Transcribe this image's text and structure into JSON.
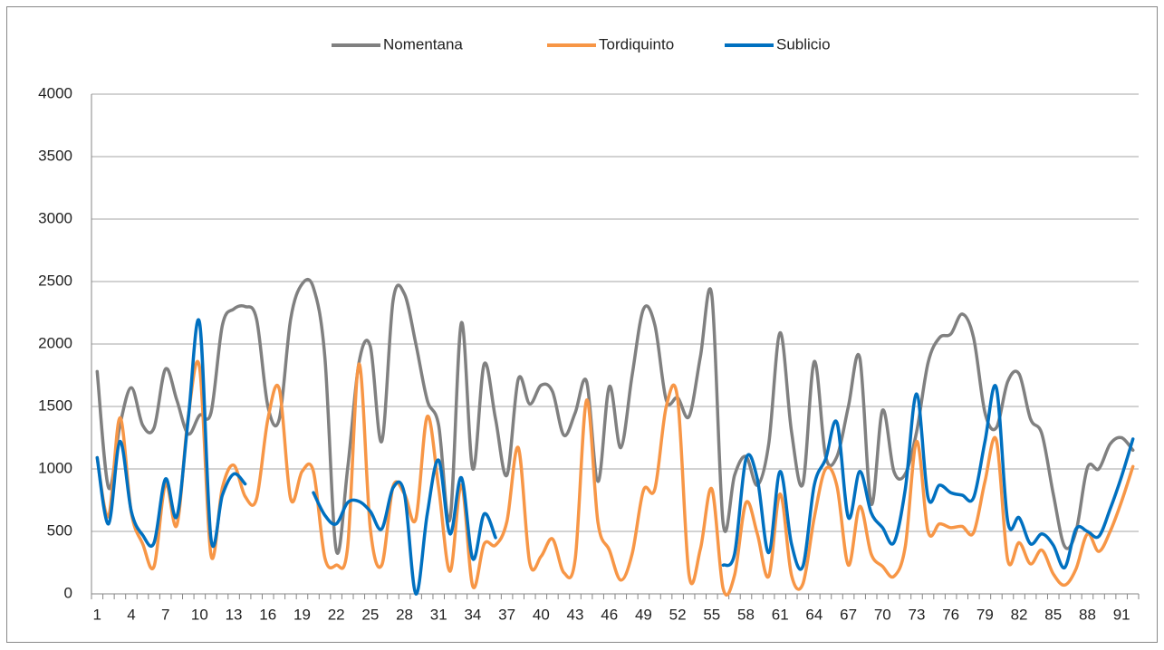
{
  "chart_data": {
    "type": "line",
    "categories": [
      1,
      null,
      null,
      4,
      null,
      null,
      7,
      null,
      null,
      10,
      null,
      null,
      13,
      null,
      null,
      16,
      null,
      null,
      19,
      null,
      null,
      22,
      null,
      null,
      25,
      null,
      null,
      28,
      null,
      null,
      31,
      null,
      null,
      34,
      null,
      null,
      37,
      null,
      null,
      40,
      null,
      null,
      43,
      null,
      null,
      46,
      null,
      null,
      49,
      null,
      null,
      52,
      null,
      null,
      55,
      null,
      null,
      58,
      null,
      null,
      61,
      null,
      null,
      64,
      null,
      null,
      67,
      null,
      null,
      70,
      null,
      null,
      73,
      null,
      null,
      76,
      null,
      null,
      79,
      null,
      null,
      82,
      null,
      null,
      85,
      null,
      null,
      88,
      null,
      null,
      91,
      null
    ],
    "series": [
      {
        "name": "Nomentana",
        "color": "#808080",
        "values": [
          1780,
          850,
          1350,
          1650,
          1350,
          1330,
          1800,
          1550,
          1280,
          1430,
          1450,
          2150,
          2280,
          2300,
          2200,
          1500,
          1400,
          2200,
          2480,
          2450,
          1900,
          350,
          1000,
          1850,
          1980,
          1220,
          2350,
          2400,
          2000,
          1550,
          1350,
          600,
          2170,
          1000,
          1840,
          1400,
          950,
          1720,
          1520,
          1670,
          1620,
          1270,
          1450,
          1700,
          900,
          1660,
          1170,
          1750,
          2280,
          2150,
          1550,
          1570,
          1420,
          1900,
          2390,
          560,
          950,
          1100,
          870,
          1200,
          2090,
          1300,
          880,
          1860,
          1100,
          1100,
          1500,
          1890,
          720,
          1470,
          980,
          960,
          1300,
          1850,
          2050,
          2080,
          2240,
          2050,
          1450,
          1330,
          1700,
          1760,
          1400,
          1280,
          800,
          380,
          500,
          1010,
          1000,
          1200,
          1250,
          1150
        ]
      },
      {
        "name": "Tordiquinto",
        "color": "#f79646",
        "values": [
          1090,
          620,
          1410,
          650,
          400,
          220,
          880,
          550,
          1420,
          1810,
          310,
          850,
          1030,
          780,
          760,
          1400,
          1640,
          760,
          980,
          980,
          290,
          230,
          370,
          1840,
          520,
          230,
          860,
          800,
          600,
          1420,
          850,
          180,
          870,
          60,
          400,
          390,
          580,
          1170,
          250,
          300,
          440,
          170,
          280,
          1550,
          570,
          350,
          110,
          320,
          830,
          840,
          1500,
          1560,
          150,
          360,
          840,
          40,
          150,
          730,
          480,
          140,
          800,
          150,
          80,
          610,
          1000,
          860,
          230,
          700,
          320,
          220,
          140,
          380,
          1220,
          500,
          560,
          530,
          540,
          490,
          900,
          1230,
          270,
          410,
          240,
          350,
          160,
          70,
          200,
          480,
          340,
          500,
          740,
          1020
        ]
      },
      {
        "name": "Sublicio",
        "color": "#0070c0",
        "values": [
          1090,
          560,
          1220,
          660,
          470,
          410,
          920,
          620,
          1400,
          2170,
          440,
          790,
          960,
          880,
          null,
          null,
          null,
          null,
          null,
          810,
          630,
          560,
          730,
          740,
          660,
          520,
          850,
          800,
          0,
          640,
          1070,
          480,
          930,
          280,
          640,
          450,
          null,
          null,
          null,
          null,
          null,
          null,
          null,
          null,
          null,
          null,
          null,
          null,
          null,
          null,
          null,
          null,
          null,
          null,
          null,
          230,
          320,
          1080,
          920,
          330,
          980,
          400,
          220,
          870,
          1080,
          1370,
          610,
          980,
          650,
          530,
          410,
          840,
          1600,
          770,
          870,
          810,
          790,
          770,
          1220,
          1650,
          580,
          610,
          400,
          480,
          390,
          210,
          520,
          500,
          460,
          680,
          940,
          1240
        ]
      }
    ],
    "ylim": [
      0,
      4000
    ],
    "yticks": [
      0,
      500,
      1000,
      1500,
      2000,
      2500,
      3000,
      3500,
      4000
    ],
    "grid": true
  }
}
